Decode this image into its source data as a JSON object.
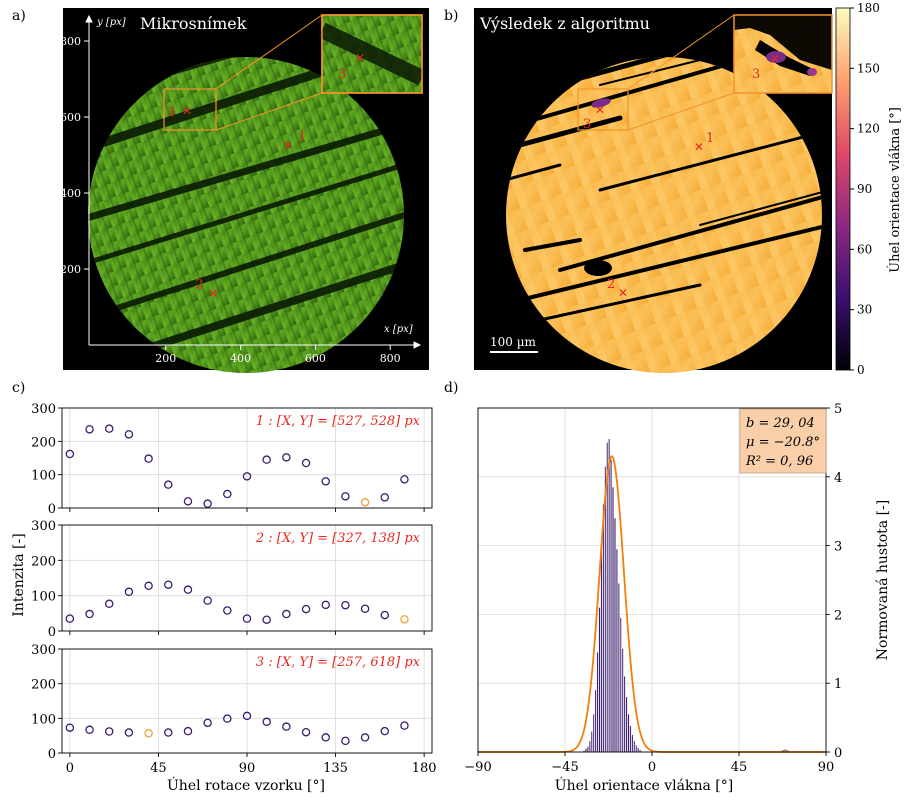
{
  "panels": {
    "a": {
      "letter": "a)",
      "title": "Mikrosnímek",
      "y_axis_label": "y [px]",
      "x_axis_label": "x [px]",
      "x_ticks": [
        200,
        400,
        600,
        800
      ],
      "y_ticks": [
        200,
        400,
        600,
        800
      ],
      "points": [
        {
          "label": "1",
          "x": 527,
          "y": 528
        },
        {
          "label": "2",
          "x": 327,
          "y": 138
        },
        {
          "label": "3",
          "x": 257,
          "y": 618
        }
      ],
      "inset_label": "3"
    },
    "b": {
      "letter": "b)",
      "title": "Výsledek z algoritmu",
      "scalebar_label": "100 µm",
      "point_labels": [
        "1",
        "2",
        "3"
      ],
      "inset_label": "3",
      "colorbar": {
        "label": "Úhel orientace vlákna [°]",
        "ticks": [
          0,
          30,
          60,
          90,
          120,
          150,
          180
        ],
        "range": [
          0,
          180
        ],
        "colors": [
          "#000004",
          "#3b0f70",
          "#8c2981",
          "#de4968",
          "#fe9f6d",
          "#fcfdbf"
        ]
      }
    },
    "c": {
      "letter": "c)",
      "ylabel": "Intenzita [-]",
      "xlabel": "Úhel rotace vzorku [°]",
      "x_ticks": [
        0,
        45,
        90,
        135,
        180
      ],
      "y_ticks": [
        0,
        100,
        200,
        300
      ],
      "subplots": [
        {
          "annotation": "1 : [X, Y] = [527, 528] px"
        },
        {
          "annotation": "2 : [X, Y] = [327, 138] px"
        },
        {
          "annotation": "3 : [X, Y] = [257, 618] px"
        }
      ]
    },
    "d": {
      "letter": "d)",
      "xlabel": "Úhel orientace vlákna [°]",
      "ylabel": "Normovaná hustota [-]",
      "x_ticks": [
        -90,
        -45,
        0,
        45,
        90
      ],
      "y_ticks": [
        0,
        1,
        2,
        3,
        4,
        5
      ],
      "fit_box": {
        "line1": "b = 29, 04",
        "line2": "μ = −20.8°",
        "line3": "R² = 0, 96"
      }
    }
  },
  "chart_data": [
    {
      "type": "scatter",
      "panel": "c-1",
      "annotation": "1 : [X, Y] = [527, 528] px",
      "xlabel": "Úhel rotace vzorku [°]",
      "ylabel": "Intenzita [-]",
      "xlim": [
        -4,
        184
      ],
      "ylim": [
        0,
        300
      ],
      "x": [
        0,
        10,
        20,
        30,
        40,
        50,
        60,
        70,
        80,
        90,
        100,
        110,
        120,
        130,
        140,
        150,
        160,
        170
      ],
      "y": [
        162,
        236,
        238,
        221,
        148,
        70,
        20,
        13,
        42,
        95,
        145,
        152,
        135,
        80,
        35,
        17,
        32,
        86
      ],
      "highlight_index": 15,
      "color": "#3b1d6e",
      "highlight_color": "#f0a030"
    },
    {
      "type": "scatter",
      "panel": "c-2",
      "annotation": "2 : [X, Y] = [327, 138] px",
      "xlim": [
        -4,
        184
      ],
      "ylim": [
        0,
        300
      ],
      "x": [
        0,
        10,
        20,
        30,
        40,
        50,
        60,
        70,
        80,
        90,
        100,
        110,
        120,
        130,
        140,
        150,
        160,
        170
      ],
      "y": [
        35,
        48,
        77,
        111,
        128,
        131,
        117,
        86,
        58,
        35,
        32,
        48,
        62,
        74,
        73,
        63,
        45,
        33
      ],
      "highlight_index": 17,
      "color": "#3b1d6e",
      "highlight_color": "#f0a030"
    },
    {
      "type": "scatter",
      "panel": "c-3",
      "annotation": "3 : [X, Y] = [257, 618] px",
      "xlim": [
        -4,
        184
      ],
      "ylim": [
        0,
        300
      ],
      "x": [
        0,
        10,
        20,
        30,
        40,
        50,
        60,
        70,
        80,
        90,
        100,
        110,
        120,
        130,
        140,
        150,
        160,
        170
      ],
      "y": [
        73,
        67,
        62,
        59,
        57,
        59,
        63,
        87,
        99,
        107,
        90,
        76,
        60,
        45,
        35,
        45,
        63,
        79
      ],
      "highlight_index": 4,
      "color": "#3b1d6e",
      "highlight_color": "#f0a030"
    },
    {
      "type": "bar",
      "panel": "d",
      "xlabel": "Úhel orientace vlákna [°]",
      "ylabel": "Normovaná hustota [-]",
      "xlim": [
        -90,
        90
      ],
      "ylim": [
        0,
        5
      ],
      "bin_centers": [
        -35,
        -34,
        -33,
        -32,
        -31,
        -30,
        -29,
        -28,
        -27,
        -26,
        -25,
        -24,
        -23,
        -22,
        -21,
        -20,
        -19,
        -18,
        -17,
        -16,
        -15,
        -14,
        -13,
        -12,
        -11,
        -10,
        -9,
        -8,
        -7,
        -6,
        -5,
        66,
        67,
        68,
        69,
        70,
        71,
        72
      ],
      "values": [
        0.02,
        0.05,
        0.08,
        0.16,
        0.3,
        0.55,
        0.9,
        1.45,
        2.1,
        2.9,
        3.6,
        4.15,
        4.5,
        4.55,
        4.25,
        3.85,
        3.4,
        2.95,
        2.45,
        1.95,
        1.5,
        1.1,
        0.8,
        0.55,
        0.38,
        0.25,
        0.16,
        0.1,
        0.06,
        0.03,
        0.01,
        0.01,
        0.02,
        0.03,
        0.04,
        0.03,
        0.02,
        0.01
      ],
      "fit_curve": {
        "type": "gaussian",
        "mu": -20.8,
        "peak": 4.3,
        "sigma": 6.3
      },
      "bar_color": "#3b1d6e",
      "fit_color": "#f07f10"
    }
  ]
}
